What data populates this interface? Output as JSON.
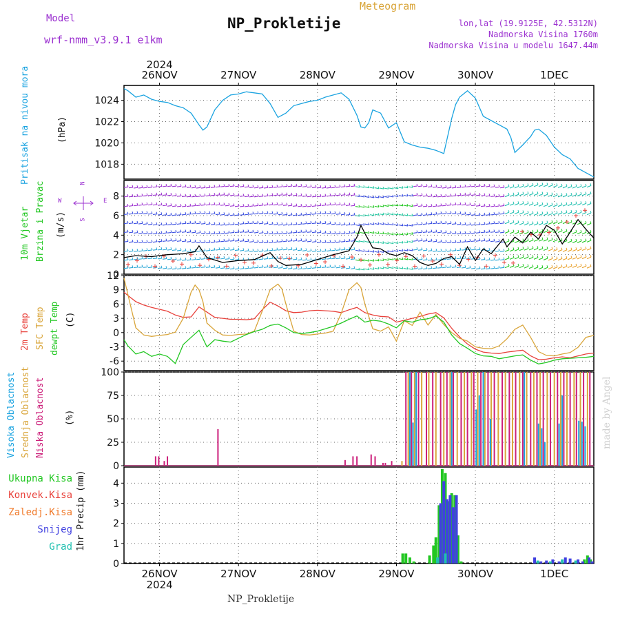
{
  "header": {
    "model_label": "Model",
    "model_name": "wrf-nmm_v3.9.1 e1km",
    "chart_type_label": "Meteogram",
    "title": "NP_Prokletije",
    "lonlat": "lon,lat (19.9125E, 42.5312N)",
    "elevation": "Nadmorska Visina 1760m",
    "model_elevation": "Nadmorska Visina u modelu 1647.44m",
    "footer_title": "NP_Prokletije",
    "watermark": "made by Angel"
  },
  "colors": {
    "pressure": "#1aa3e0",
    "temp2m": "#e8403a",
    "sfc_temp": "#d9a53a",
    "dewpoint": "#22c722",
    "cloud_high": "#1aa3e0",
    "cloud_mid": "#d9a53a",
    "cloud_low": "#cc1f7a",
    "precip_total": "#22c722",
    "precip_conv": "#e8403a",
    "precip_frozen": "#f07a2a",
    "precip_snow": "#4040e0",
    "precip_hail": "#20c0b0",
    "wind_label": "#22c722",
    "compass": "#9b30d0"
  },
  "compass": {
    "n": "N",
    "s": "S",
    "e": "E",
    "w": "W"
  },
  "chart_data": [
    {
      "type": "line",
      "panel": "pressure",
      "ylabel_main": "Pritisak na nivou mora",
      "ylabel_unit": "(hPa)",
      "ylim": [
        1016.6,
        1025.4
      ],
      "yticks": [
        1018,
        1020,
        1022,
        1024
      ],
      "xlim_days": [
        25.55,
        31.5
      ],
      "x_day_ticks": [
        26,
        27,
        28,
        29,
        30,
        31
      ],
      "top_year": "2024",
      "bottom_year": "2024",
      "day_labels": [
        "26NOV",
        "27NOV",
        "28NOV",
        "29NOV",
        "30NOV",
        "1DEC"
      ],
      "series": [
        {
          "x": [
            25.55,
            25.6,
            25.7,
            25.8,
            25.9,
            26.0,
            26.1,
            26.2,
            26.3,
            26.4,
            26.5,
            26.55,
            26.6,
            26.7,
            26.8,
            26.9,
            27.0,
            27.1,
            27.2,
            27.3,
            27.4,
            27.5,
            27.6,
            27.7,
            27.8,
            27.9,
            28.0,
            28.1,
            28.2,
            28.3,
            28.4,
            28.5,
            28.55,
            28.6,
            28.65,
            28.7,
            28.8,
            28.9,
            29.0,
            29.1,
            29.2,
            29.3,
            29.4,
            29.5,
            29.6,
            29.7,
            29.75,
            29.8,
            29.9,
            30.0,
            30.1,
            30.2,
            30.3,
            30.4,
            30.45,
            30.5,
            30.6,
            30.7,
            30.75,
            30.8,
            30.9,
            31.0,
            31.1,
            31.2,
            31.3,
            31.4,
            31.5
          ],
          "values": [
            1025.1,
            1024.9,
            1024.3,
            1024.5,
            1024.1,
            1023.9,
            1023.8,
            1023.5,
            1023.3,
            1022.8,
            1021.7,
            1021.2,
            1021.5,
            1023.1,
            1024.0,
            1024.5,
            1024.6,
            1024.8,
            1024.7,
            1024.6,
            1023.7,
            1022.4,
            1022.8,
            1023.5,
            1023.7,
            1023.9,
            1024.0,
            1024.3,
            1024.5,
            1024.7,
            1024.1,
            1022.6,
            1021.5,
            1021.4,
            1021.9,
            1023.1,
            1022.8,
            1021.4,
            1021.9,
            1020.1,
            1019.8,
            1019.6,
            1019.5,
            1019.3,
            1019.0,
            1022.3,
            1023.6,
            1024.3,
            1024.9,
            1024.2,
            1022.5,
            1022.1,
            1021.7,
            1021.3,
            1020.5,
            1019.1,
            1019.8,
            1020.6,
            1021.2,
            1021.3,
            1020.7,
            1019.6,
            1018.9,
            1018.5,
            1017.6,
            1017.2,
            1016.8
          ]
        }
      ]
    },
    {
      "type": "line",
      "panel": "wind",
      "ylabel_main": "10m Vjetar",
      "ylabel_sub": "Brzina i Pravac",
      "ylabel_unit": "(m/s)",
      "ylim": [
        0,
        9.6
      ],
      "yticks": [
        0,
        2,
        4,
        6,
        8
      ],
      "series": [
        {
          "name": "wind speed",
          "x": [
            25.55,
            25.7,
            25.9,
            26.1,
            26.3,
            26.45,
            26.5,
            26.6,
            26.8,
            27.0,
            27.2,
            27.4,
            27.5,
            27.6,
            27.8,
            28.0,
            28.2,
            28.4,
            28.5,
            28.55,
            28.6,
            28.7,
            28.8,
            28.9,
            29.0,
            29.1,
            29.2,
            29.3,
            29.4,
            29.5,
            29.6,
            29.7,
            29.8,
            29.9,
            30.0,
            30.1,
            30.2,
            30.3,
            30.35,
            30.4,
            30.5,
            30.6,
            30.7,
            30.8,
            30.9,
            31.0,
            31.1,
            31.2,
            31.3,
            31.4,
            31.5
          ],
          "values": [
            1.7,
            1.9,
            1.8,
            2.0,
            2.1,
            2.3,
            2.9,
            1.7,
            1.2,
            1.4,
            1.5,
            2.2,
            1.3,
            0.9,
            1.0,
            1.5,
            2.0,
            2.4,
            3.8,
            5.0,
            4.2,
            2.7,
            2.6,
            2.1,
            1.9,
            2.2,
            1.9,
            1.2,
            0.9,
            1.1,
            1.6,
            1.8,
            1.0,
            2.8,
            1.4,
            2.6,
            2.1,
            3.1,
            3.6,
            2.8,
            3.8,
            3.2,
            4.3,
            3.6,
            5.0,
            4.5,
            3.1,
            4.3,
            5.6,
            4.6,
            3.7
          ]
        }
      ]
    },
    {
      "type": "line",
      "panel": "temperature",
      "ylabel_a": "2m Temp",
      "ylabel_b": "SFC Temp",
      "ylabel_c": "dewpt Temp",
      "ylabel_unit": "(C)",
      "ylim": [
        -8,
        12
      ],
      "yticks": [
        -6,
        -3,
        0,
        3,
        6,
        9,
        12
      ],
      "series": [
        {
          "name": "2m Temp",
          "x": [
            25.55,
            25.6,
            25.7,
            25.8,
            25.9,
            26.0,
            26.1,
            26.2,
            26.3,
            26.4,
            26.5,
            26.6,
            26.7,
            26.8,
            26.9,
            27.0,
            27.1,
            27.2,
            27.3,
            27.4,
            27.5,
            27.6,
            27.7,
            27.8,
            27.9,
            28.0,
            28.1,
            28.2,
            28.3,
            28.4,
            28.5,
            28.6,
            28.7,
            28.8,
            28.9,
            29.0,
            29.1,
            29.2,
            29.3,
            29.4,
            29.5,
            29.6,
            29.7,
            29.8,
            29.9,
            30.0,
            30.1,
            30.2,
            30.3,
            30.4,
            30.5,
            30.6,
            30.7,
            30.8,
            30.9,
            31.0,
            31.1,
            31.2,
            31.3,
            31.4,
            31.5
          ],
          "values": [
            8.5,
            7.8,
            6.5,
            5.8,
            5.3,
            4.9,
            4.5,
            3.7,
            3.2,
            3.3,
            5.4,
            4.3,
            3.2,
            3.0,
            2.8,
            2.8,
            2.7,
            2.9,
            4.8,
            6.4,
            5.6,
            4.6,
            4.2,
            4.3,
            4.6,
            4.7,
            4.6,
            4.5,
            4.2,
            4.8,
            5.3,
            4.2,
            3.7,
            3.4,
            3.3,
            2.2,
            2.6,
            3.0,
            3.4,
            3.9,
            4.2,
            3.1,
            0.9,
            -0.9,
            -2.4,
            -3.5,
            -4.1,
            -4.3,
            -4.4,
            -4.1,
            -3.9,
            -3.7,
            -4.9,
            -5.7,
            -5.6,
            -5.3,
            -5.1,
            -5.3,
            -4.9,
            -4.5,
            -4.3
          ]
        },
        {
          "name": "SFC Temp",
          "x": [
            25.55,
            25.6,
            25.7,
            25.8,
            25.9,
            26.0,
            26.1,
            26.2,
            26.3,
            26.4,
            26.45,
            26.5,
            26.55,
            26.6,
            26.7,
            26.8,
            26.9,
            27.0,
            27.1,
            27.2,
            27.3,
            27.4,
            27.5,
            27.55,
            27.6,
            27.7,
            27.8,
            27.9,
            28.0,
            28.1,
            28.2,
            28.3,
            28.4,
            28.5,
            28.55,
            28.6,
            28.7,
            28.8,
            28.9,
            29.0,
            29.1,
            29.2,
            29.3,
            29.4,
            29.5,
            29.6,
            29.7,
            29.8,
            29.9,
            30.0,
            30.1,
            30.2,
            30.3,
            30.4,
            30.5,
            30.6,
            30.7,
            30.8,
            30.9,
            31.0,
            31.1,
            31.2,
            31.3,
            31.4,
            31.5
          ],
          "values": [
            11.5,
            8.0,
            1.0,
            -0.5,
            -0.8,
            -0.6,
            -0.4,
            0.1,
            3.0,
            8.5,
            10.0,
            9.0,
            6.5,
            2.0,
            0.5,
            -0.5,
            -0.6,
            -0.4,
            -0.3,
            0.3,
            4.5,
            9.0,
            10.2,
            9.2,
            6.0,
            0.3,
            -0.4,
            -0.5,
            -0.3,
            -0.1,
            0.3,
            4.0,
            9.0,
            10.5,
            9.5,
            6.0,
            0.8,
            0.3,
            1.2,
            -1.8,
            2.5,
            1.5,
            4.3,
            1.6,
            3.8,
            1.7,
            0.0,
            -1.2,
            -1.8,
            -3.0,
            -3.3,
            -3.4,
            -2.8,
            -1.3,
            0.7,
            1.6,
            -1.0,
            -4.0,
            -4.8,
            -4.9,
            -4.5,
            -4.2,
            -3.1,
            -1.0,
            -0.6
          ]
        },
        {
          "name": "dewpt Temp",
          "x": [
            25.55,
            25.6,
            25.7,
            25.8,
            25.9,
            26.0,
            26.1,
            26.2,
            26.3,
            26.4,
            26.5,
            26.6,
            26.7,
            26.8,
            26.9,
            27.0,
            27.1,
            27.2,
            27.3,
            27.4,
            27.5,
            27.6,
            27.7,
            27.8,
            27.9,
            28.0,
            28.1,
            28.2,
            28.3,
            28.4,
            28.5,
            28.6,
            28.7,
            28.8,
            28.9,
            29.0,
            29.1,
            29.2,
            29.3,
            29.4,
            29.5,
            29.6,
            29.7,
            29.8,
            29.9,
            30.0,
            30.1,
            30.2,
            30.3,
            30.4,
            30.5,
            30.6,
            30.7,
            30.8,
            30.9,
            31.0,
            31.1,
            31.2,
            31.3,
            31.4,
            31.5
          ],
          "values": [
            -1.5,
            -2.8,
            -4.5,
            -4.0,
            -5.0,
            -4.5,
            -5.0,
            -6.5,
            -2.5,
            -1.0,
            0.5,
            -3.0,
            -1.5,
            -1.8,
            -2.0,
            -1.2,
            -0.4,
            0.2,
            0.7,
            1.5,
            1.8,
            1.0,
            0.0,
            -0.2,
            0.0,
            0.3,
            0.8,
            1.3,
            2.0,
            2.8,
            3.5,
            2.2,
            2.6,
            2.4,
            1.8,
            1.0,
            2.5,
            2.2,
            2.7,
            2.9,
            3.5,
            2.2,
            -0.5,
            -2.3,
            -3.3,
            -4.4,
            -4.9,
            -5.0,
            -5.5,
            -5.2,
            -4.9,
            -4.7,
            -5.8,
            -6.6,
            -6.3,
            -5.8,
            -5.5,
            -5.4,
            -5.3,
            -5.2,
            -5.0
          ]
        }
      ]
    },
    {
      "type": "bar",
      "panel": "clouds",
      "ylabel_a": "Visoka Oblacnost",
      "ylabel_b": "Srednja Oblacnost",
      "ylabel_c": "Niska Oblacnost",
      "ylabel_unit": "(%)",
      "ylim": [
        0,
        100
      ],
      "yticks": [
        0,
        25,
        50,
        75,
        100
      ],
      "series": [
        {
          "name": "Niska Oblacnost",
          "x": [
            25.95,
            25.99,
            26.06,
            26.1,
            26.74,
            28.35,
            28.45,
            28.5,
            28.68,
            28.73,
            28.83,
            28.86,
            28.94,
            29.12,
            29.19,
            29.28,
            29.38,
            29.46,
            29.56,
            29.64,
            29.72,
            29.82,
            29.9,
            29.98,
            30.07,
            30.16,
            30.24,
            30.34,
            30.43,
            30.51,
            30.6,
            30.7,
            30.78,
            30.86,
            30.95,
            31.04,
            31.12,
            31.2,
            31.28,
            31.37,
            31.45
          ],
          "values": [
            10,
            10,
            5,
            10,
            39,
            6,
            10,
            10,
            12,
            10,
            3,
            3,
            5,
            100,
            100,
            100,
            100,
            100,
            100,
            100,
            100,
            100,
            100,
            100,
            100,
            100,
            100,
            100,
            100,
            100,
            100,
            100,
            100,
            100,
            100,
            100,
            100,
            100,
            100,
            100,
            100
          ]
        },
        {
          "name": "Srednja Oblacnost",
          "x": [
            29.07,
            29.15,
            29.23,
            29.32,
            29.41,
            29.5,
            29.6,
            29.68,
            29.77,
            29.86,
            29.95,
            30.03,
            30.12,
            30.2,
            30.29,
            30.38,
            30.47,
            30.56,
            30.65,
            30.74,
            30.82,
            30.91,
            31.0,
            31.08,
            31.16,
            31.25,
            31.33,
            31.42
          ],
          "values": [
            5,
            100,
            100,
            100,
            100,
            100,
            100,
            100,
            100,
            100,
            100,
            100,
            100,
            100,
            100,
            100,
            100,
            100,
            100,
            100,
            100,
            100,
            100,
            100,
            100,
            100,
            100,
            100
          ]
        },
        {
          "name": "Visoka Oblacnost",
          "x": [
            29.17,
            29.21,
            29.25,
            29.7,
            30.01,
            30.05,
            30.1,
            30.19,
            30.62,
            30.8,
            30.84,
            30.88,
            30.93,
            31.06,
            31.1,
            31.31,
            31.35,
            31.39
          ],
          "values": [
            100,
            46,
            100,
            100,
            60,
            75,
            100,
            50,
            100,
            45,
            40,
            25,
            0,
            45,
            75,
            48,
            47,
            42
          ]
        }
      ]
    },
    {
      "type": "bar",
      "panel": "precip",
      "ylabel_main": "1hr Precip (mm)",
      "legend": [
        "Ukupna Kisa",
        "Konvek.Kisa",
        "Zaledj.Kisa",
        "Snijeg",
        "Grad"
      ],
      "ylim": [
        0,
        4.8
      ],
      "yticks": [
        0,
        1,
        2,
        3,
        4
      ],
      "series": [
        {
          "name": "Ukupna Kisa",
          "x": [
            29.08,
            29.12,
            29.17,
            29.22,
            29.42,
            29.47,
            29.5,
            29.54,
            29.58,
            29.62,
            29.66,
            29.7,
            29.74,
            29.78,
            29.82,
            31.38,
            31.42,
            31.46
          ],
          "values": [
            0.5,
            0.5,
            0.3,
            0.1,
            0.4,
            0.9,
            1.3,
            2.9,
            4.7,
            4.5,
            3.1,
            3.5,
            3.4,
            1.4,
            0.1,
            0.2,
            0.4,
            0.2
          ]
        },
        {
          "name": "Snijeg",
          "x": [
            29.56,
            29.6,
            29.64,
            29.68,
            29.72,
            29.76,
            30.75,
            30.83,
            30.9,
            30.98,
            31.06,
            31.14,
            31.2,
            31.3,
            31.36,
            31.44,
            31.48
          ],
          "values": [
            3.0,
            4.1,
            3.2,
            3.4,
            2.8,
            3.4,
            0.3,
            0.1,
            0.15,
            0.2,
            0.1,
            0.3,
            0.25,
            0.2,
            0.1,
            0.3,
            0.1
          ]
        },
        {
          "name": "Grad",
          "x": [
            29.52,
            29.62,
            30.79,
            30.95,
            31.1,
            31.27
          ],
          "values": [
            0.3,
            0.5,
            0.15,
            0.1,
            0.2,
            0.15
          ]
        }
      ]
    }
  ]
}
